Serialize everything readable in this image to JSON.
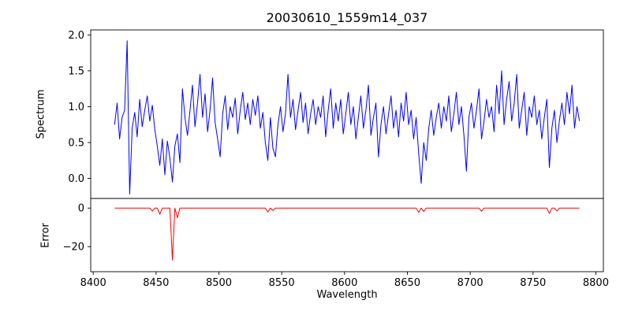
{
  "chart_data": {
    "type": "line",
    "title": "20030610_1559m14_037",
    "xlabel": "Wavelength",
    "grid": false,
    "legend": "none",
    "x_start": 8417,
    "x_step": 2,
    "xlim": [
      8398,
      8806
    ],
    "x_ticks": [
      8400,
      8450,
      8500,
      8550,
      8600,
      8650,
      8700,
      8750,
      8800
    ],
    "panels": [
      {
        "name": "spectrum",
        "ylabel": "Spectrum",
        "ylim": [
          -0.28,
          2.07
        ],
        "color": "#0000ff",
        "y_ticks": [
          {
            "v": 0.0,
            "label": "0.0"
          },
          {
            "v": 0.5,
            "label": "0.5"
          },
          {
            "v": 1.0,
            "label": "1.0"
          },
          {
            "v": 1.5,
            "label": "1.5"
          },
          {
            "v": 2.0,
            "label": "2.0"
          }
        ],
        "values": [
          0.75,
          1.05,
          0.55,
          0.85,
          0.95,
          1.92,
          -0.22,
          0.7,
          0.92,
          0.58,
          1.1,
          0.72,
          0.95,
          1.15,
          0.8,
          1.02,
          0.68,
          0.45,
          0.18,
          0.55,
          0.05,
          0.52,
          0.28,
          -0.05,
          0.45,
          0.62,
          0.22,
          1.25,
          0.85,
          0.6,
          0.95,
          1.3,
          0.72,
          1.05,
          1.45,
          0.85,
          1.18,
          0.65,
          0.95,
          1.4,
          0.78,
          0.55,
          0.3,
          0.9,
          1.15,
          0.68,
          1.0,
          0.85,
          1.12,
          0.62,
          0.95,
          1.2,
          0.82,
          1.05,
          0.75,
          1.1,
          0.88,
          1.15,
          0.7,
          0.92,
          0.5,
          0.25,
          0.85,
          0.42,
          0.3,
          0.75,
          1.0,
          0.65,
          0.9,
          1.45,
          0.85,
          1.1,
          0.68,
          0.95,
          1.2,
          0.78,
          1.05,
          0.62,
          0.9,
          1.1,
          0.75,
          1.0,
          0.85,
          1.15,
          0.58,
          0.95,
          1.25,
          0.7,
          1.05,
          0.8,
          1.1,
          0.62,
          0.9,
          1.2,
          0.75,
          1.0,
          0.55,
          0.85,
          1.15,
          0.7,
          0.95,
          1.3,
          0.6,
          0.85,
          1.05,
          0.3,
          0.75,
          1.0,
          0.62,
          0.9,
          1.15,
          0.7,
          0.95,
          0.58,
          1.05,
          0.8,
          1.2,
          0.75,
          0.95,
          0.55,
          0.85,
          0.35,
          -0.07,
          0.5,
          0.25,
          0.7,
          0.95,
          0.6,
          0.85,
          1.05,
          0.7,
          1.0,
          0.8,
          1.15,
          0.65,
          0.9,
          1.2,
          0.75,
          1.0,
          0.6,
          0.1,
          0.85,
          1.05,
          0.7,
          0.95,
          1.25,
          0.55,
          0.8,
          1.1,
          0.85,
          1.0,
          0.65,
          1.3,
          0.9,
          1.5,
          0.75,
          1.1,
          1.35,
          0.8,
          1.05,
          1.45,
          0.7,
          0.95,
          1.2,
          0.6,
          1.0,
          0.85,
          1.15,
          0.75,
          0.95,
          0.55,
          0.85,
          1.1,
          0.15,
          0.7,
          0.95,
          0.5,
          0.8,
          1.05,
          0.75,
          1.2,
          0.9,
          1.3,
          0.7,
          1.0,
          0.8
        ]
      },
      {
        "name": "error",
        "ylabel": "Error",
        "ylim": [
          -33,
          5
        ],
        "color": "#ff0000",
        "y_ticks": [
          {
            "v": 0,
            "label": "0"
          },
          {
            "v": -20,
            "label": "−20"
          }
        ],
        "baseline": 0.0,
        "features": [
          [
            8447,
            -1.5
          ],
          [
            8453,
            -3.2
          ],
          [
            8463,
            -27.0
          ],
          [
            8467,
            -5.0
          ],
          [
            8539,
            -2.0
          ],
          [
            8543,
            -1.2
          ],
          [
            8659,
            -2.2
          ],
          [
            8663,
            -1.8
          ],
          [
            8709,
            -1.6
          ],
          [
            8763,
            -2.8
          ],
          [
            8769,
            -1.5
          ]
        ]
      }
    ]
  }
}
